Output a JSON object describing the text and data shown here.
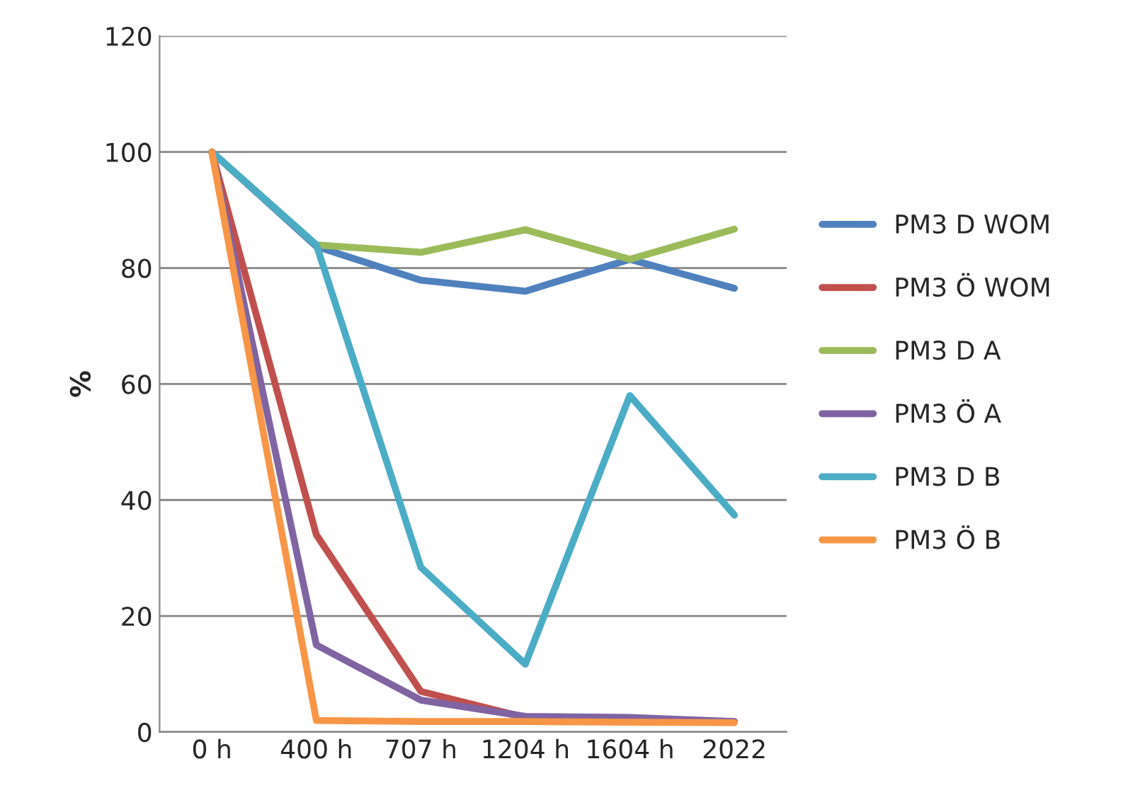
{
  "chart_data": {
    "type": "line",
    "ylabel": "%",
    "categories": [
      "0 h",
      "400 h",
      "707 h",
      "1204 h",
      "1604 h",
      "2022"
    ],
    "series": [
      {
        "name": "PM3 D WOM",
        "color": "#4f81bd",
        "values": [
          100,
          83.7,
          77.9,
          76,
          81.5,
          76.5
        ]
      },
      {
        "name": "PM3 Ö WOM",
        "color": "#c0504d",
        "values": [
          100,
          34,
          7,
          2.5,
          2.2,
          1.8
        ]
      },
      {
        "name": "PM3 D A",
        "color": "#9bbb59",
        "values": [
          100,
          84,
          82.7,
          86.6,
          81.5,
          86.7
        ]
      },
      {
        "name": "PM3 Ö A",
        "color": "#8064a2",
        "values": [
          100,
          15,
          5.5,
          2.7,
          2.5,
          1.8
        ]
      },
      {
        "name": "PM3 D B",
        "color": "#4bacc6",
        "values": [
          100,
          84,
          28.4,
          11.7,
          58,
          37.4
        ]
      },
      {
        "name": "PM3 Ö B",
        "color": "#f79646",
        "values": [
          100,
          2,
          1.8,
          1.8,
          1.7,
          1.6
        ]
      }
    ],
    "ylim": [
      0,
      120
    ],
    "yticks": [
      0,
      20,
      40,
      60,
      80,
      100,
      120
    ],
    "grid": "y",
    "legend": "right",
    "marker": "none",
    "line_style": "solid"
  }
}
